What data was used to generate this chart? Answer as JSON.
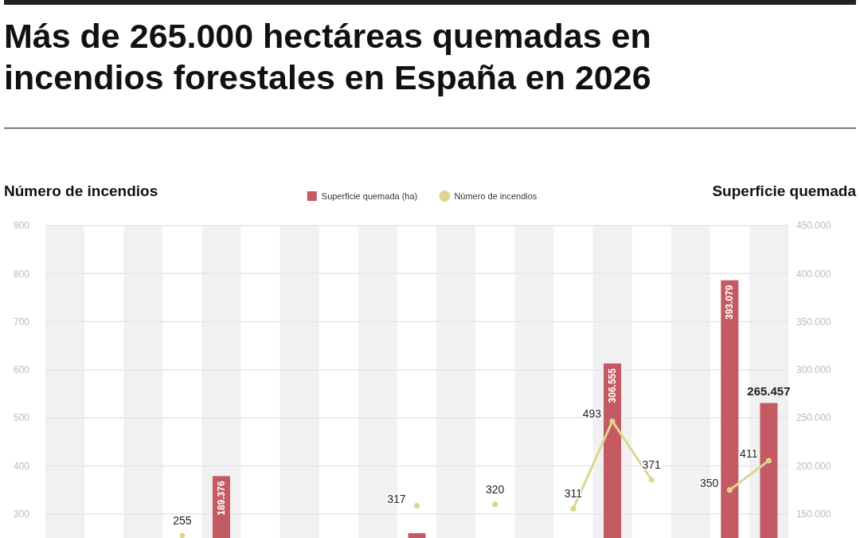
{
  "chart_data": {
    "type": "bar",
    "title": "Más de 265.000 hectáreas quemadas en incendios forestales en España en 2026",
    "ylabel": "Número de incendios",
    "y2label": "Superficie quemada",
    "categories": [
      null,
      null,
      null,
      null,
      null,
      null,
      null,
      null,
      null,
      null,
      null,
      null,
      null,
      null,
      null,
      null,
      null,
      null,
      null
    ],
    "series": [
      {
        "name": "Superficie quemada (ha)",
        "axis": "y2",
        "color": "#c45a63",
        "values": [
          null,
          null,
          null,
          null,
          189376,
          null,
          null,
          null,
          null,
          130000,
          null,
          null,
          null,
          null,
          306555,
          null,
          null,
          393079,
          265457
        ],
        "value_labels": [
          null,
          null,
          null,
          null,
          "189.376",
          null,
          null,
          null,
          null,
          null,
          null,
          null,
          null,
          null,
          "306.555",
          null,
          null,
          "393.079",
          "265.457"
        ]
      },
      {
        "name": "Número de incendios",
        "type": "line",
        "color": "#dcd68f",
        "marker": "circle",
        "values": [
          null,
          null,
          null,
          255,
          null,
          null,
          null,
          null,
          null,
          317,
          null,
          320,
          null,
          311,
          493,
          371,
          null,
          350,
          411
        ],
        "value_labels": [
          null,
          null,
          null,
          "255",
          null,
          null,
          null,
          null,
          null,
          "317",
          null,
          "320",
          null,
          "311",
          "493",
          "371",
          null,
          "350",
          "411"
        ]
      }
    ],
    "ylim": [
      250,
      900
    ],
    "yticks": [
      300,
      400,
      500,
      600,
      700,
      800,
      900
    ],
    "y2lim": [
      125000,
      450000
    ],
    "y2ticks": [
      {
        "value": 150000,
        "label": "150.000"
      },
      {
        "value": 200000,
        "label": "200.000"
      },
      {
        "value": 250000,
        "label": "250.000"
      },
      {
        "value": 300000,
        "label": "300.000"
      },
      {
        "value": 350000,
        "label": "350.000"
      },
      {
        "value": 400000,
        "label": "400.000"
      },
      {
        "value": 450000,
        "label": "450.000"
      }
    ],
    "grid": "y",
    "legend": "top"
  }
}
